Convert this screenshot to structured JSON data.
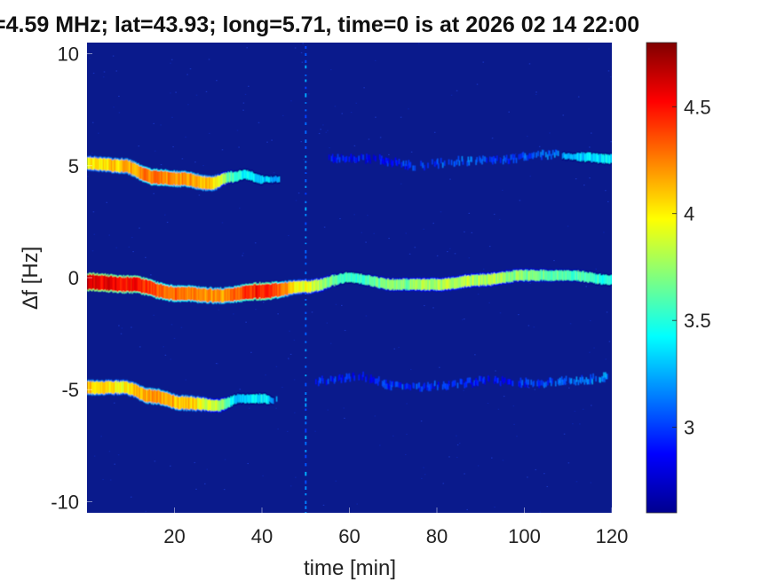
{
  "chart_data": {
    "type": "heatmap",
    "title": "=4.59 MHz;  lat=43.93; long=5.71, time=0 is at 2026 02 14 22:00",
    "xlabel": "time [min]",
    "ylabel": "∆f [Hz]",
    "xlim": [
      0,
      120
    ],
    "ylim": [
      -10.5,
      10.5
    ],
    "x_ticks": [
      20,
      40,
      60,
      80,
      100,
      120
    ],
    "x_tick_labels": [
      "20",
      "40",
      "60",
      "80",
      "100",
      "120"
    ],
    "y_ticks": [
      10,
      5,
      0,
      -5,
      -10
    ],
    "y_tick_labels": [
      "10",
      "5",
      "0",
      "-5",
      "-10"
    ],
    "colormap": "jet",
    "colorbar": {
      "range": [
        2.6,
        4.8
      ],
      "ticks": [
        3,
        3.5,
        4,
        4.5
      ],
      "tick_labels": [
        "3",
        "3.5",
        "4",
        "4.5"
      ]
    },
    "background_color": "#0a1a8c",
    "series": [
      {
        "points": [
          [
            0,
            -0.2
          ],
          [
            10,
            -0.3
          ],
          [
            20,
            -0.7
          ],
          [
            30,
            -0.8
          ],
          [
            40,
            -0.6
          ],
          [
            50,
            -0.4
          ],
          [
            60,
            0.0
          ],
          [
            70,
            -0.3
          ],
          [
            80,
            -0.3
          ],
          [
            90,
            -0.1
          ],
          [
            100,
            0.1
          ],
          [
            110,
            0.1
          ],
          [
            120,
            -0.1
          ]
        ],
        "intensity": [
          4.6,
          4.5,
          4.3,
          4.2,
          4.5,
          3.9,
          3.5,
          3.7,
          3.8,
          3.8,
          3.7,
          3.6,
          3.5
        ]
      },
      {
        "points": [
          [
            0,
            5.1
          ],
          [
            8,
            5.0
          ],
          [
            15,
            4.5
          ],
          [
            22,
            4.4
          ],
          [
            28,
            4.2
          ],
          [
            33,
            4.5
          ],
          [
            36,
            4.6
          ],
          [
            40,
            4.4
          ],
          [
            44,
            4.4
          ]
        ],
        "intensity": [
          4.0,
          4.1,
          4.3,
          4.2,
          4.1,
          3.6,
          3.4,
          3.3,
          3.2
        ]
      },
      {
        "points": [
          [
            0,
            -4.9
          ],
          [
            8,
            -4.9
          ],
          [
            15,
            -5.3
          ],
          [
            22,
            -5.6
          ],
          [
            30,
            -5.7
          ],
          [
            35,
            -5.4
          ],
          [
            40,
            -5.4
          ],
          [
            44,
            -5.5
          ]
        ],
        "intensity": [
          4.1,
          4.0,
          4.2,
          4.1,
          3.8,
          3.3,
          3.4,
          3.1
        ]
      },
      {
        "points": [
          [
            55,
            5.3
          ],
          [
            65,
            5.3
          ],
          [
            75,
            5.0
          ],
          [
            85,
            5.2
          ],
          [
            95,
            5.3
          ],
          [
            105,
            5.5
          ],
          [
            112,
            5.4
          ],
          [
            120,
            5.3
          ]
        ],
        "intensity": [
          2.9,
          2.9,
          3.0,
          3.1,
          3.0,
          3.1,
          3.3,
          3.4
        ]
      },
      {
        "points": [
          [
            52,
            -4.6
          ],
          [
            62,
            -4.4
          ],
          [
            72,
            -4.9
          ],
          [
            82,
            -4.8
          ],
          [
            92,
            -4.6
          ],
          [
            102,
            -4.7
          ],
          [
            112,
            -4.6
          ],
          [
            120,
            -4.4
          ]
        ],
        "intensity": [
          3.0,
          2.9,
          3.0,
          3.0,
          2.9,
          3.0,
          3.1,
          3.2
        ]
      }
    ],
    "vertical_artifact": {
      "x": 50,
      "intensity": 3.0
    }
  }
}
